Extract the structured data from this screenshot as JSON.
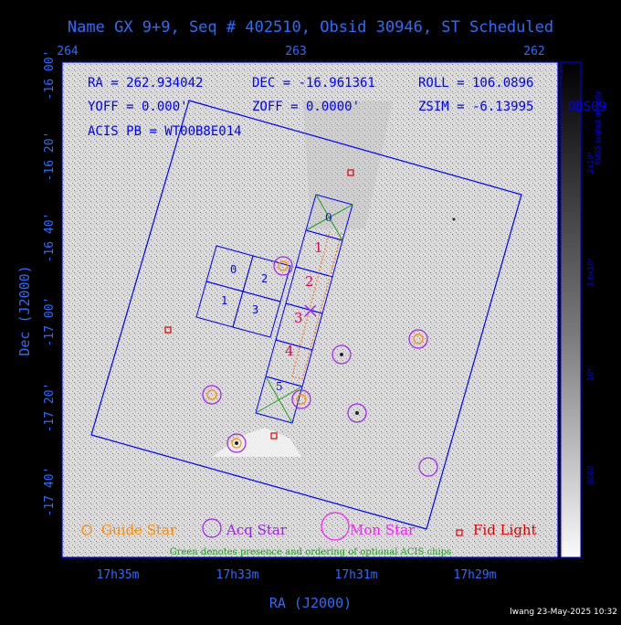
{
  "title": "Name GX 9+9, Seq # 402510, Obsid 30946, ST Scheduled",
  "top_axis_ticks": [
    "264",
    "263",
    "262"
  ],
  "dec_ticks": [
    "-16 00'",
    "-16 20'",
    "-16 40'",
    "-17 00'",
    "-17 20'",
    "-17 40'"
  ],
  "ra_ticks": [
    "17h35m",
    "17h33m",
    "17h31m",
    "17h29m"
  ],
  "y_axis_label": "Dec (J2000)",
  "x_axis_label": "RA (J2000)",
  "info": {
    "line1_a": "RA = 262.934042",
    "line1_b": "DEC = -16.961361",
    "line1_c": "ROLL = 106.0896",
    "line2_a": "YOFF =   0.000'",
    "line2_b": "ZOFF =  0.0000'",
    "line2_c": "ZSIM = -6.13995",
    "line2_d": "OBS09",
    "line3": "ACIS PB = WT00B8E014"
  },
  "chips_left": [
    "0",
    "2",
    "1",
    "3"
  ],
  "chips_right": [
    "0",
    "1",
    "2",
    "3",
    "4",
    "5"
  ],
  "colorbar": {
    "label": "RUSS scaled density",
    "ticks": [
      "2x10⁴",
      "1.6x10⁴",
      "10⁴",
      "6000"
    ]
  },
  "legend": {
    "guide": "Guide Star",
    "acq": "Acq Star",
    "mon": "Mon Star",
    "fid": "Fid Light",
    "note": "Green denotes presence and ordering of optional ACIS chips"
  },
  "footer": "lwang 23-May-2025 10:32",
  "colors": {
    "frame": "#0000ff",
    "text_blue": "#2a6cff",
    "guide": "#ff8c00",
    "acq": "#a020f0",
    "fid": "#e00000",
    "optional": "#1aa01a",
    "chip_label_red": "#e0005a"
  }
}
